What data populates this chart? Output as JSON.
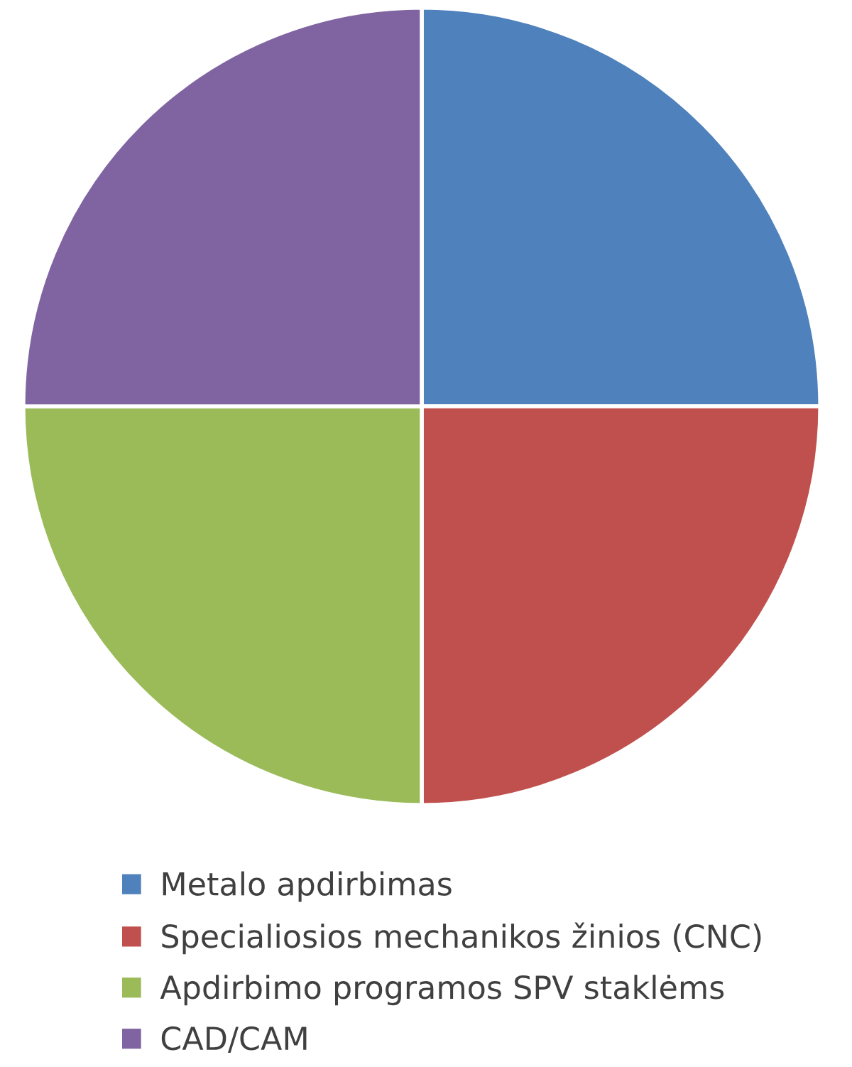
{
  "chart_data": {
    "type": "pie",
    "categories": [
      "Metalo apdirbimas",
      "Specialiosios mechanikos žinios (CNC)",
      "Apdirbimo programos SPV staklėms",
      "CAD/CAM"
    ],
    "values": [
      25,
      25,
      25,
      25
    ],
    "colors": [
      "#4f81bd",
      "#c0504d",
      "#9bbb59",
      "#8064a2"
    ],
    "legend": "bottom"
  }
}
